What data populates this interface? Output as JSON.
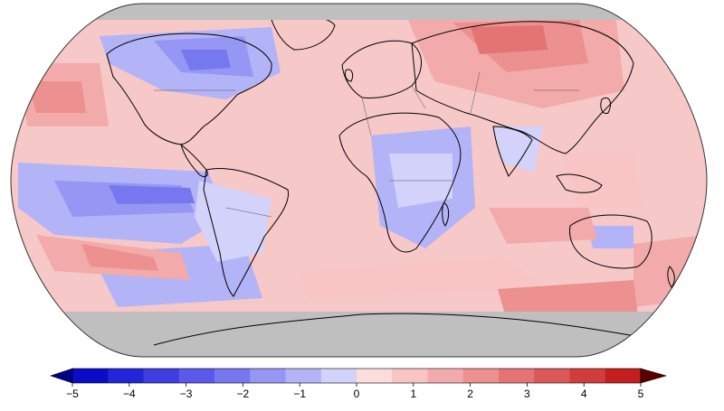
{
  "map": {
    "projection": "robinson",
    "missing_color": "#bfbfbf",
    "coastline_color": "#000000",
    "border_color": "#555555"
  },
  "legend": {
    "ticks": [
      "−5",
      "−4",
      "−3",
      "−2",
      "−1",
      "0",
      "1",
      "2",
      "3",
      "4",
      "5"
    ],
    "colors": [
      "#0b0bc8",
      "#2424d8",
      "#3d3de2",
      "#5a5aea",
      "#7777f0",
      "#9696f4",
      "#b3b3f7",
      "#d2d2fb",
      "#fcdcdc",
      "#f8c4c4",
      "#f2aaaa",
      "#ec9090",
      "#e47474",
      "#dc5858",
      "#d23c3c",
      "#c41e1e"
    ],
    "under_color": "#00008b",
    "over_color": "#5a0000",
    "min": -5,
    "max": 5
  }
}
